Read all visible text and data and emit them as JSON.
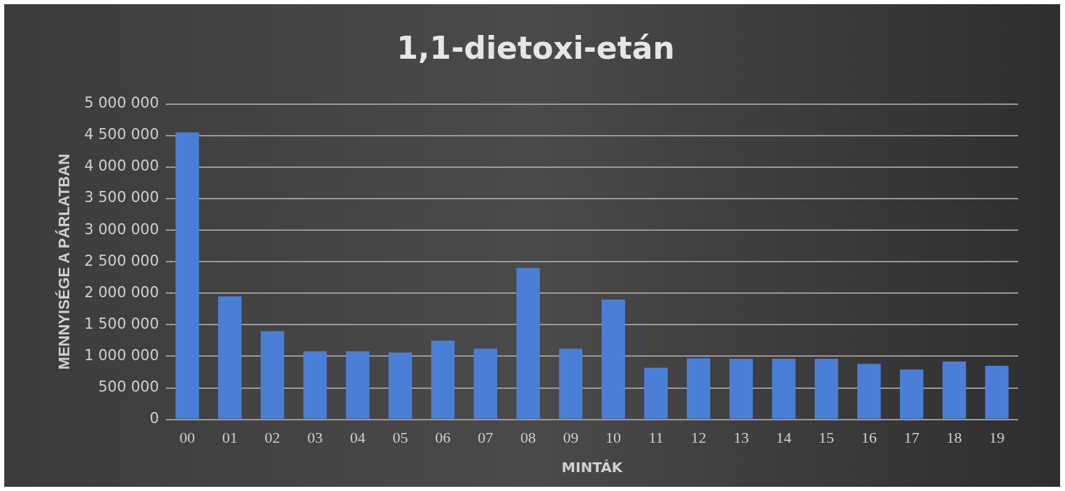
{
  "chart_data": {
    "type": "bar",
    "title": "1,1-dietoxi-etán",
    "xlabel": "MINTÁK",
    "ylabel": "MENNYISÉGE A PÁRLATBAN",
    "categories": [
      "00",
      "01",
      "02",
      "03",
      "04",
      "05",
      "06",
      "07",
      "08",
      "09",
      "10",
      "11",
      "12",
      "13",
      "14",
      "15",
      "16",
      "17",
      "18",
      "19"
    ],
    "values": [
      4550000,
      1950000,
      1400000,
      1080000,
      1080000,
      1060000,
      1250000,
      1120000,
      2400000,
      1120000,
      1900000,
      820000,
      970000,
      960000,
      960000,
      960000,
      880000,
      790000,
      920000,
      850000
    ],
    "color": "#4a7fd8",
    "ylim": [
      0,
      5000000
    ],
    "yticks": [
      {
        "value": 0,
        "label": "0"
      },
      {
        "value": 500000,
        "label": "500 000"
      },
      {
        "value": 1000000,
        "label": "1 000 000"
      },
      {
        "value": 1500000,
        "label": "1 500 000"
      },
      {
        "value": 2000000,
        "label": "2 000 000"
      },
      {
        "value": 2500000,
        "label": "2 500 000"
      },
      {
        "value": 3000000,
        "label": "3 000 000"
      },
      {
        "value": 3500000,
        "label": "3 500 000"
      },
      {
        "value": 4000000,
        "label": "4 000 000"
      },
      {
        "value": 4500000,
        "label": "4 500 000"
      },
      {
        "value": 5000000,
        "label": "5 000 000"
      }
    ],
    "grid": "y"
  }
}
